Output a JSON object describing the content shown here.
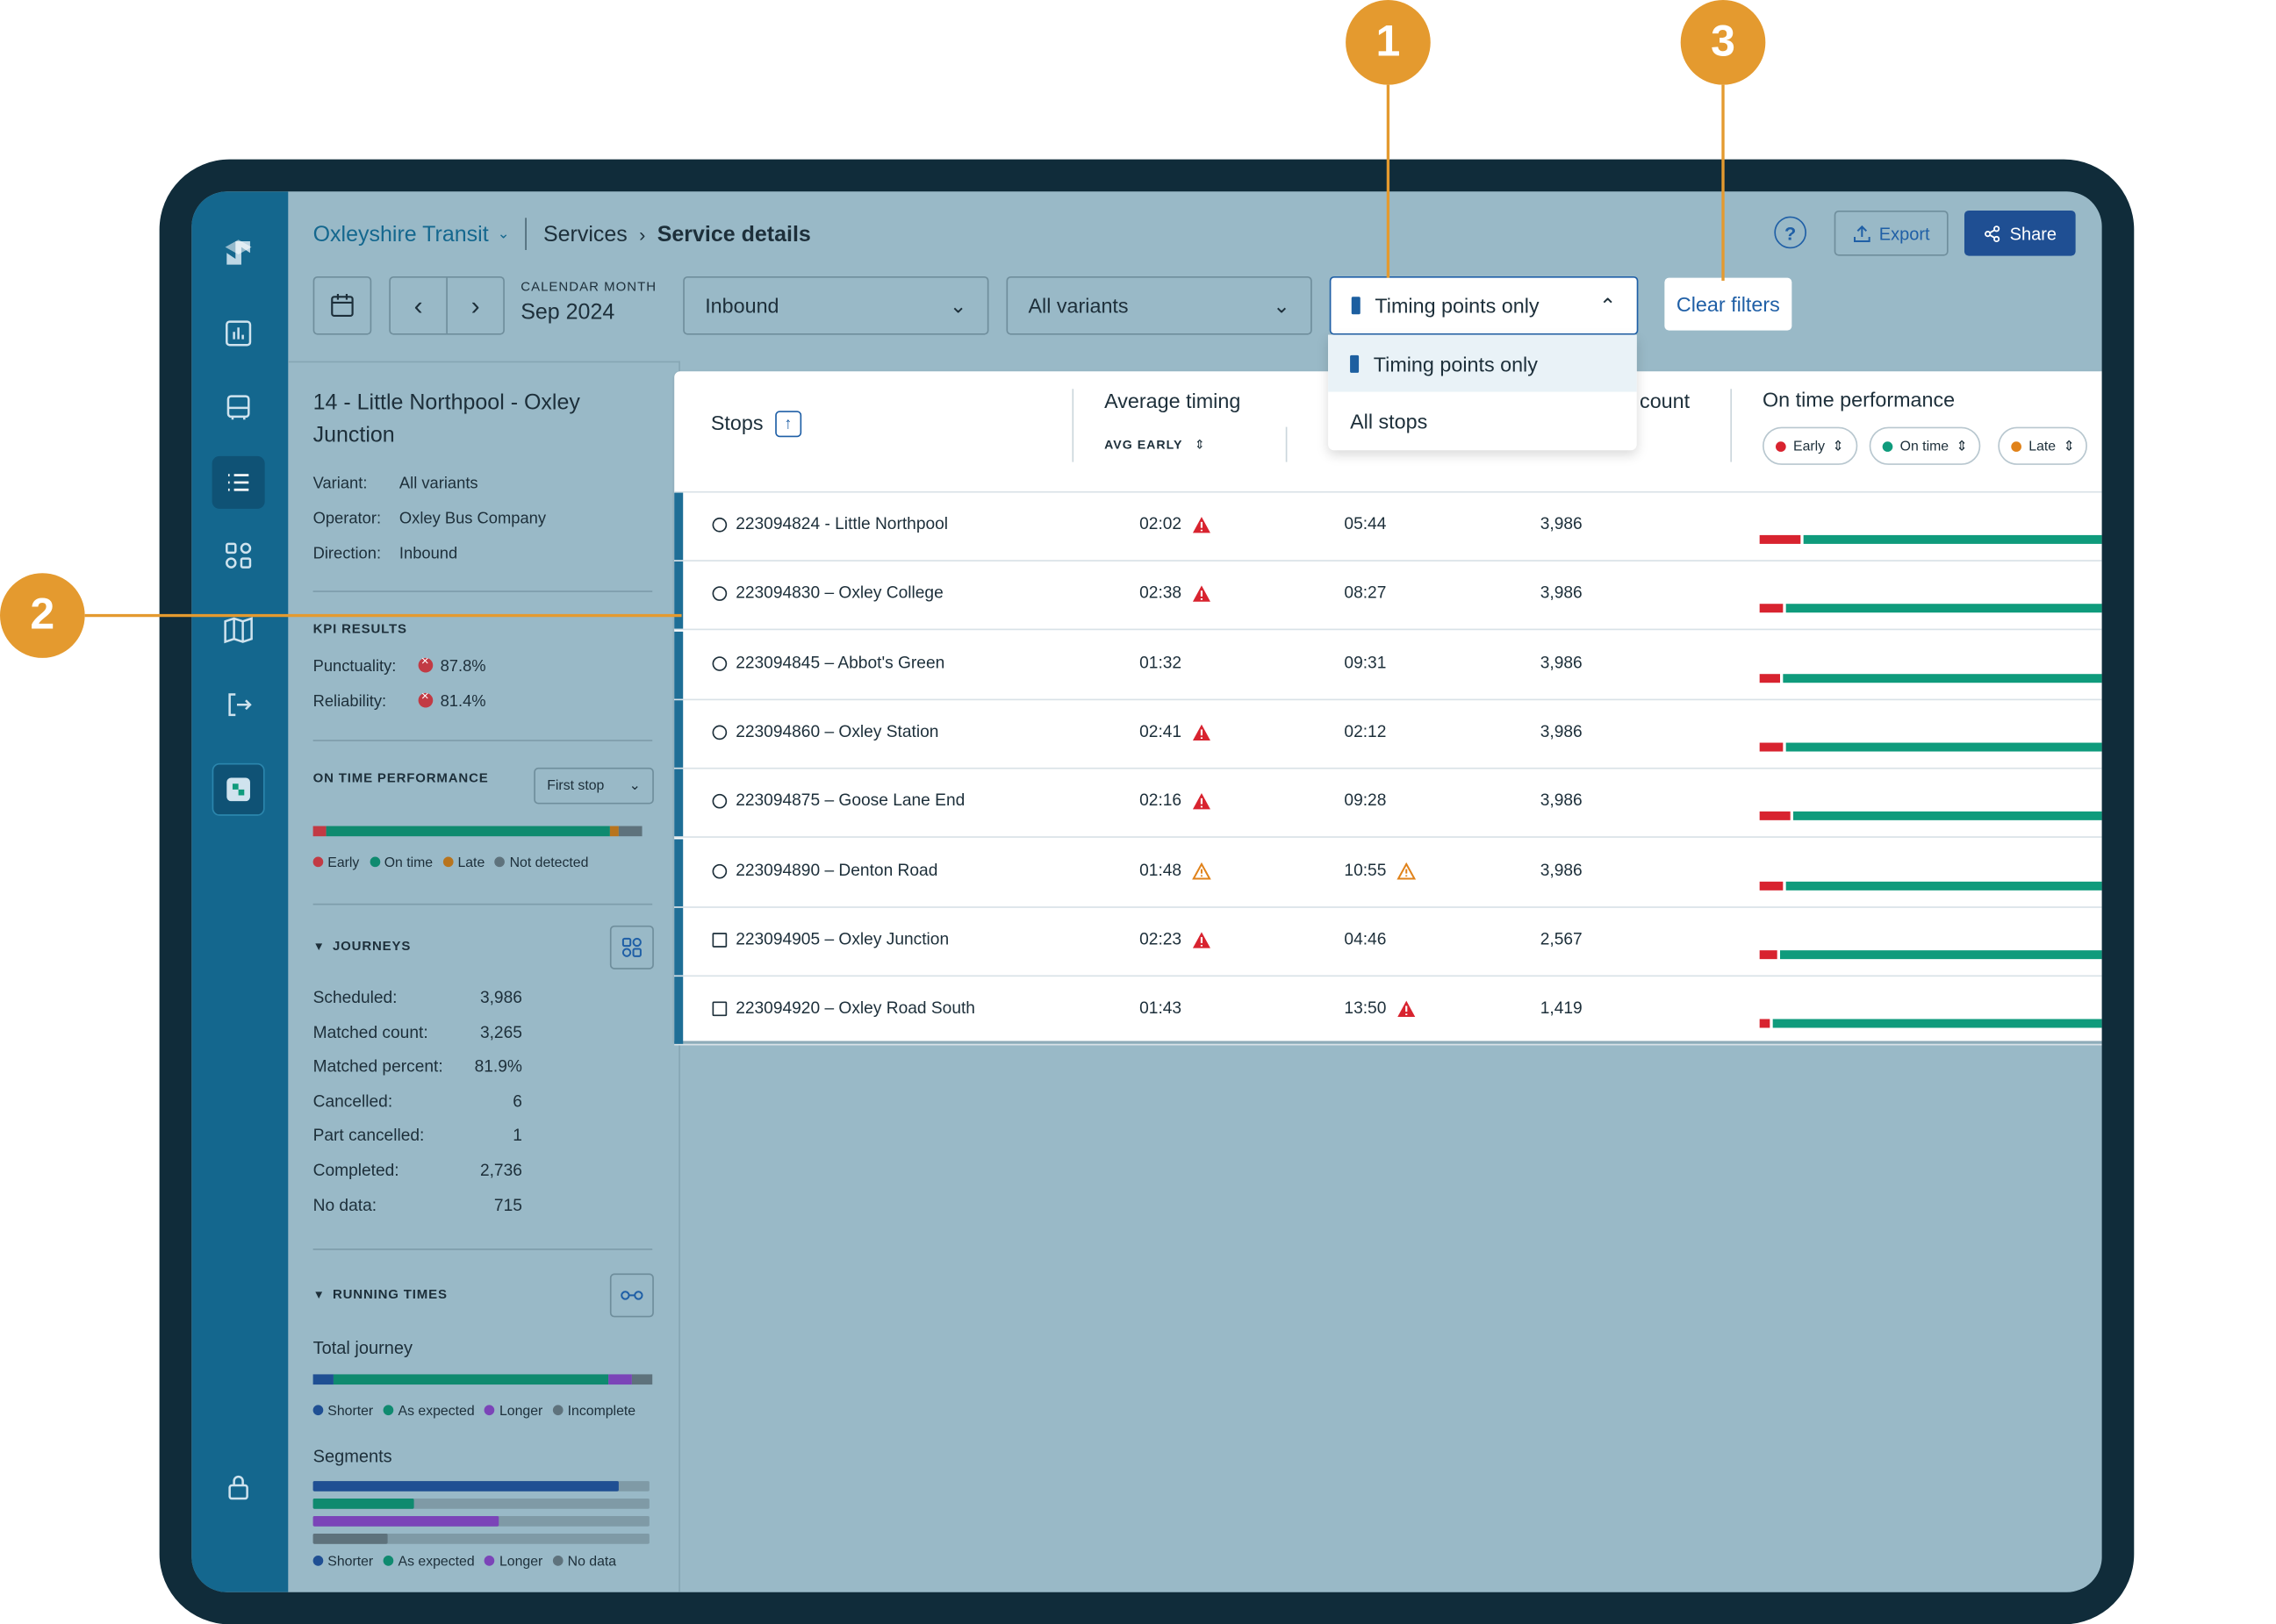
{
  "header": {
    "org": "Oxleyshire Transit",
    "crumb": "Services",
    "current": "Service details",
    "help": "?",
    "export": "Export",
    "share": "Share"
  },
  "filters": {
    "cal_label": "CALENDAR MONTH",
    "cal_value": "Sep 2024",
    "direction": "Inbound",
    "variants": "All variants",
    "stops_filter": "Timing points only",
    "clear": "Clear filters",
    "dropdown_options": [
      "Timing points only",
      "All stops"
    ]
  },
  "sidebar": {
    "title": "14 - Little Northpool - Oxley Junction",
    "variant_label": "Variant:",
    "variant_value": "All variants",
    "operator_label": "Operator:",
    "operator_value": "Oxley Bus Company",
    "direction_label": "Direction:",
    "direction_value": "Inbound",
    "kpi_heading": "KPI RESULTS",
    "punctuality_label": "Punctuality:",
    "punctuality_value": "87.8%",
    "reliability_label": "Reliability:",
    "reliability_value": "81.4%",
    "otp_heading": "ON TIME PERFORMANCE",
    "otp_select": "First stop",
    "otp_bar": {
      "early": 0.04,
      "on_time": 0.86,
      "late": 0.03,
      "not_detected": 0.07
    },
    "otp_legend": [
      "Early",
      "On time",
      "Late",
      "Not detected"
    ],
    "journeys_heading": "JOURNEYS",
    "journeys": [
      {
        "label": "Scheduled:",
        "value": "3,986"
      },
      {
        "label": "Matched count:",
        "value": "3,265"
      },
      {
        "label": "Matched percent:",
        "value": "81.9%"
      },
      {
        "label": "Cancelled:",
        "value": "6"
      },
      {
        "label": "Part cancelled:",
        "value": "1"
      },
      {
        "label": "Completed:",
        "value": "2,736"
      },
      {
        "label": "No data:",
        "value": "715"
      }
    ],
    "running_heading": "RUNNING TIMES",
    "total_journey": "Total journey",
    "total_bar": {
      "shorter": 0.06,
      "as_expected": 0.81,
      "longer": 0.07,
      "incomplete": 0.06
    },
    "total_legend": [
      "Shorter",
      "As expected",
      "Longer",
      "Incomplete"
    ],
    "segments_label": "Segments",
    "segments": [
      0.91,
      0.3,
      0.55,
      0.22
    ],
    "segments_legend": [
      "Shorter",
      "As expected",
      "Longer",
      "No data"
    ]
  },
  "table": {
    "stops_header": "Stops",
    "avg_header": "Average timing",
    "avg_early": "AVG EARLY",
    "count_header": "count",
    "otp_header": "On time performance",
    "pills": [
      "Early",
      "On time",
      "Late"
    ],
    "rows": [
      {
        "stop": "223094824 - Little Northpool",
        "type": "circle",
        "early": "02:02",
        "early_warn": "red",
        "late": "05:44",
        "late_warn": "",
        "count": "3,986",
        "perf_early": 0.12
      },
      {
        "stop": "223094830 – Oxley College",
        "type": "circle",
        "early": "02:38",
        "early_warn": "red",
        "late": "08:27",
        "late_warn": "",
        "count": "3,986",
        "perf_early": 0.07
      },
      {
        "stop": "223094845 – Abbot's Green",
        "type": "circle",
        "early": "01:32",
        "early_warn": "",
        "late": "09:31",
        "late_warn": "",
        "count": "3,986",
        "perf_early": 0.06
      },
      {
        "stop": "223094860 – Oxley Station",
        "type": "circle",
        "early": "02:41",
        "early_warn": "red",
        "late": "02:12",
        "late_warn": "",
        "count": "3,986",
        "perf_early": 0.07
      },
      {
        "stop": "223094875 – Goose Lane End",
        "type": "circle",
        "early": "02:16",
        "early_warn": "red",
        "late": "09:28",
        "late_warn": "",
        "count": "3,986",
        "perf_early": 0.09
      },
      {
        "stop": "223094890 – Denton Road",
        "type": "circle",
        "early": "01:48",
        "early_warn": "orange",
        "late": "10:55",
        "late_warn": "orange",
        "count": "3,986",
        "perf_early": 0.07
      },
      {
        "stop": "223094905 – Oxley Junction",
        "type": "square",
        "early": "02:23",
        "early_warn": "red",
        "late": "04:46",
        "late_warn": "",
        "count": "2,567",
        "perf_early": 0.05
      },
      {
        "stop": "223094920 – Oxley Road South",
        "type": "square",
        "early": "01:43",
        "early_warn": "",
        "late": "13:50",
        "late_warn": "red",
        "count": "1,419",
        "perf_early": 0.03
      }
    ]
  },
  "callouts": [
    "1",
    "2",
    "3"
  ],
  "colors": {
    "early": "#d8232f",
    "on_time": "#0f9b7c",
    "late": "#e0821a",
    "not_detected": "#6a7f8a",
    "shorter": "#1f4f93",
    "longer": "#7b44b8",
    "brand": "#14678e"
  }
}
